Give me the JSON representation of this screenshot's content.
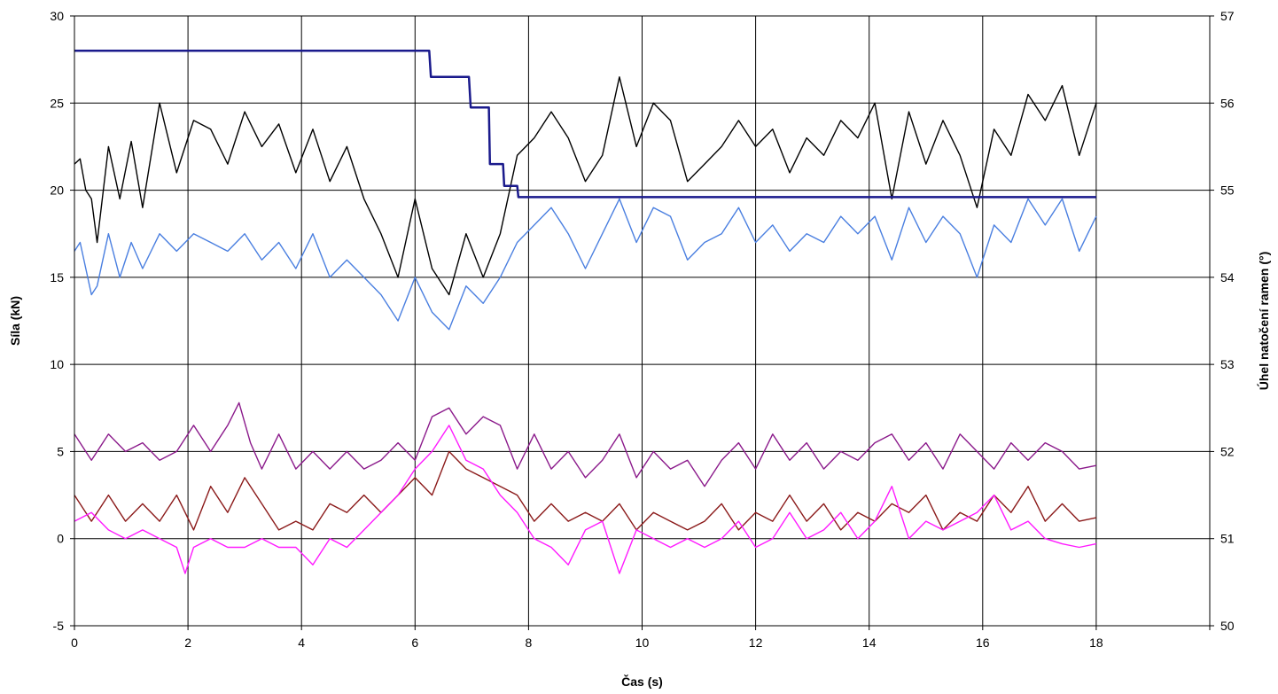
{
  "chart_data": {
    "type": "line",
    "title": "",
    "xlabel": "Čas  (s)",
    "ylabel": "Síla  (kN)",
    "y2label": "Úhel natočení ramen (°)",
    "xlim": [
      0,
      20
    ],
    "ylim": [
      -5,
      30
    ],
    "y2lim": [
      50,
      57
    ],
    "xticks": [
      0,
      2,
      4,
      6,
      8,
      10,
      12,
      14,
      16,
      18
    ],
    "yticks": [
      -5,
      0,
      5,
      10,
      15,
      20,
      25,
      30
    ],
    "y2ticks": [
      50,
      51,
      52,
      53,
      54,
      55,
      56,
      57
    ],
    "grid": true,
    "legend": "none",
    "series": [
      {
        "color": "#000000",
        "axis": "left",
        "x": [
          0,
          0.1,
          0.2,
          0.3,
          0.4,
          0.6,
          0.8,
          1.0,
          1.2,
          1.5,
          1.8,
          2.1,
          2.4,
          2.7,
          3.0,
          3.3,
          3.6,
          3.9,
          4.2,
          4.5,
          4.8,
          5.1,
          5.4,
          5.7,
          6.0,
          6.3,
          6.6,
          6.9,
          7.2,
          7.5,
          7.8,
          8.1,
          8.4,
          8.7,
          9.0,
          9.3,
          9.6,
          9.9,
          10.2,
          10.5,
          10.8,
          11.1,
          11.4,
          11.7,
          12.0,
          12.3,
          12.6,
          12.9,
          13.2,
          13.5,
          13.8,
          14.1,
          14.4,
          14.7,
          15.0,
          15.3,
          15.6,
          15.9,
          16.2,
          16.5,
          16.8,
          17.1,
          17.4,
          17.7,
          18.0
        ],
        "y": [
          21.5,
          21.8,
          20.0,
          19.5,
          17.0,
          22.5,
          19.5,
          22.8,
          19.0,
          25.0,
          21.0,
          24.0,
          23.5,
          21.5,
          24.5,
          22.5,
          23.8,
          21.0,
          23.5,
          20.5,
          22.5,
          19.5,
          17.5,
          15.0,
          19.5,
          15.5,
          14.0,
          17.5,
          15.0,
          17.5,
          22.0,
          23.0,
          24.5,
          23.0,
          20.5,
          22.0,
          26.5,
          22.5,
          25.0,
          24.0,
          20.5,
          21.5,
          22.5,
          24.0,
          22.5,
          23.5,
          21.0,
          23.0,
          22.0,
          24.0,
          23.0,
          25.0,
          19.5,
          24.5,
          21.5,
          24.0,
          22.0,
          19.0,
          23.5,
          22.0,
          25.5,
          24.0,
          26.0,
          22.0,
          25.0
        ]
      },
      {
        "color": "#4a7fe0",
        "axis": "left",
        "x": [
          0,
          0.1,
          0.2,
          0.3,
          0.4,
          0.6,
          0.8,
          1.0,
          1.2,
          1.5,
          1.8,
          2.1,
          2.4,
          2.7,
          3.0,
          3.3,
          3.6,
          3.9,
          4.2,
          4.5,
          4.8,
          5.1,
          5.4,
          5.7,
          6.0,
          6.3,
          6.6,
          6.9,
          7.2,
          7.5,
          7.8,
          8.1,
          8.4,
          8.7,
          9.0,
          9.3,
          9.6,
          9.9,
          10.2,
          10.5,
          10.8,
          11.1,
          11.4,
          11.7,
          12.0,
          12.3,
          12.6,
          12.9,
          13.2,
          13.5,
          13.8,
          14.1,
          14.4,
          14.7,
          15.0,
          15.3,
          15.6,
          15.9,
          16.2,
          16.5,
          16.8,
          17.1,
          17.4,
          17.7,
          18.0
        ],
        "y": [
          16.5,
          17.0,
          15.5,
          14.0,
          14.5,
          17.5,
          15.0,
          17.0,
          15.5,
          17.5,
          16.5,
          17.5,
          17.0,
          16.5,
          17.5,
          16.0,
          17.0,
          15.5,
          17.5,
          15.0,
          16.0,
          15.0,
          14.0,
          12.5,
          15.0,
          13.0,
          12.0,
          14.5,
          13.5,
          15.0,
          17.0,
          18.0,
          19.0,
          17.5,
          15.5,
          17.5,
          19.5,
          17.0,
          19.0,
          18.5,
          16.0,
          17.0,
          17.5,
          19.0,
          17.0,
          18.0,
          16.5,
          17.5,
          17.0,
          18.5,
          17.5,
          18.5,
          16.0,
          19.0,
          17.0,
          18.5,
          17.5,
          15.0,
          18.0,
          17.0,
          19.5,
          18.0,
          19.5,
          16.5,
          18.5
        ]
      },
      {
        "color": "#1a1a8c",
        "axis": "right",
        "x": [
          0,
          6.25,
          6.28,
          6.95,
          6.98,
          7.3,
          7.32,
          7.55,
          7.57,
          7.8,
          7.82,
          18.0
        ],
        "y": [
          56.6,
          56.6,
          56.3,
          56.3,
          55.95,
          55.95,
          55.3,
          55.3,
          55.05,
          55.05,
          54.92,
          54.92
        ]
      },
      {
        "color": "#8b1a8b",
        "axis": "left",
        "x": [
          0,
          0.3,
          0.6,
          0.9,
          1.2,
          1.5,
          1.8,
          2.1,
          2.4,
          2.7,
          2.9,
          3.1,
          3.3,
          3.6,
          3.9,
          4.2,
          4.5,
          4.8,
          5.1,
          5.4,
          5.7,
          6.0,
          6.3,
          6.6,
          6.9,
          7.2,
          7.5,
          7.8,
          8.1,
          8.4,
          8.7,
          9.0,
          9.3,
          9.6,
          9.9,
          10.2,
          10.5,
          10.8,
          11.1,
          11.4,
          11.7,
          12.0,
          12.3,
          12.6,
          12.9,
          13.2,
          13.5,
          13.8,
          14.1,
          14.4,
          14.7,
          15.0,
          15.3,
          15.6,
          15.9,
          16.2,
          16.5,
          16.8,
          17.1,
          17.4,
          17.7,
          18.0
        ],
        "y": [
          6.0,
          4.5,
          6.0,
          5.0,
          5.5,
          4.5,
          5.0,
          6.5,
          5.0,
          6.5,
          7.8,
          5.5,
          4.0,
          6.0,
          4.0,
          5.0,
          4.0,
          5.0,
          4.0,
          4.5,
          5.5,
          4.5,
          7.0,
          7.5,
          6.0,
          7.0,
          6.5,
          4.0,
          6.0,
          4.0,
          5.0,
          3.5,
          4.5,
          6.0,
          3.5,
          5.0,
          4.0,
          4.5,
          3.0,
          4.5,
          5.5,
          4.0,
          6.0,
          4.5,
          5.5,
          4.0,
          5.0,
          4.5,
          5.5,
          6.0,
          4.5,
          5.5,
          4.0,
          6.0,
          5.0,
          4.0,
          5.5,
          4.5,
          5.5,
          5.0,
          4.0,
          4.2
        ]
      },
      {
        "color": "#8b1a1a",
        "axis": "left",
        "x": [
          0,
          0.3,
          0.6,
          0.9,
          1.2,
          1.5,
          1.8,
          2.1,
          2.4,
          2.7,
          3.0,
          3.3,
          3.6,
          3.9,
          4.2,
          4.5,
          4.8,
          5.1,
          5.4,
          5.7,
          6.0,
          6.3,
          6.6,
          6.9,
          7.2,
          7.5,
          7.8,
          8.1,
          8.4,
          8.7,
          9.0,
          9.3,
          9.6,
          9.9,
          10.2,
          10.5,
          10.8,
          11.1,
          11.4,
          11.7,
          12.0,
          12.3,
          12.6,
          12.9,
          13.2,
          13.5,
          13.8,
          14.1,
          14.4,
          14.7,
          15.0,
          15.3,
          15.6,
          15.9,
          16.2,
          16.5,
          16.8,
          17.1,
          17.4,
          17.7,
          18.0
        ],
        "y": [
          2.5,
          1.0,
          2.5,
          1.0,
          2.0,
          1.0,
          2.5,
          0.5,
          3.0,
          1.5,
          3.5,
          2.0,
          0.5,
          1.0,
          0.5,
          2.0,
          1.5,
          2.5,
          1.5,
          2.5,
          3.5,
          2.5,
          5.0,
          4.0,
          3.5,
          3.0,
          2.5,
          1.0,
          2.0,
          1.0,
          1.5,
          1.0,
          2.0,
          0.5,
          1.5,
          1.0,
          0.5,
          1.0,
          2.0,
          0.5,
          1.5,
          1.0,
          2.5,
          1.0,
          2.0,
          0.5,
          1.5,
          1.0,
          2.0,
          1.5,
          2.5,
          0.5,
          1.5,
          1.0,
          2.5,
          1.5,
          3.0,
          1.0,
          2.0,
          1.0,
          1.2
        ]
      },
      {
        "color": "#ff1aff",
        "axis": "left",
        "x": [
          0,
          0.3,
          0.6,
          0.9,
          1.2,
          1.5,
          1.8,
          1.95,
          2.1,
          2.4,
          2.7,
          3.0,
          3.3,
          3.6,
          3.9,
          4.2,
          4.5,
          4.8,
          5.1,
          5.4,
          5.7,
          6.0,
          6.3,
          6.6,
          6.9,
          7.2,
          7.5,
          7.8,
          8.1,
          8.4,
          8.7,
          9.0,
          9.3,
          9.6,
          9.9,
          10.2,
          10.5,
          10.8,
          11.1,
          11.4,
          11.7,
          12.0,
          12.3,
          12.6,
          12.9,
          13.2,
          13.5,
          13.8,
          14.1,
          14.4,
          14.7,
          15.0,
          15.3,
          15.6,
          15.9,
          16.2,
          16.5,
          16.8,
          17.1,
          17.4,
          17.7,
          18.0
        ],
        "y": [
          1.0,
          1.5,
          0.5,
          0.0,
          0.5,
          0.0,
          -0.5,
          -2.0,
          -0.5,
          0.0,
          -0.5,
          -0.5,
          0.0,
          -0.5,
          -0.5,
          -1.5,
          0.0,
          -0.5,
          0.5,
          1.5,
          2.5,
          4.0,
          5.0,
          6.5,
          4.5,
          4.0,
          2.5,
          1.5,
          0.0,
          -0.5,
          -1.5,
          0.5,
          1.0,
          -2.0,
          0.5,
          0.0,
          -0.5,
          0.0,
          -0.5,
          0.0,
          1.0,
          -0.5,
          0.0,
          1.5,
          0.0,
          0.5,
          1.5,
          0.0,
          1.0,
          3.0,
          0.0,
          1.0,
          0.5,
          1.0,
          1.5,
          2.5,
          0.5,
          1.0,
          0.0,
          -0.3,
          -0.5,
          -0.3
        ]
      }
    ]
  }
}
